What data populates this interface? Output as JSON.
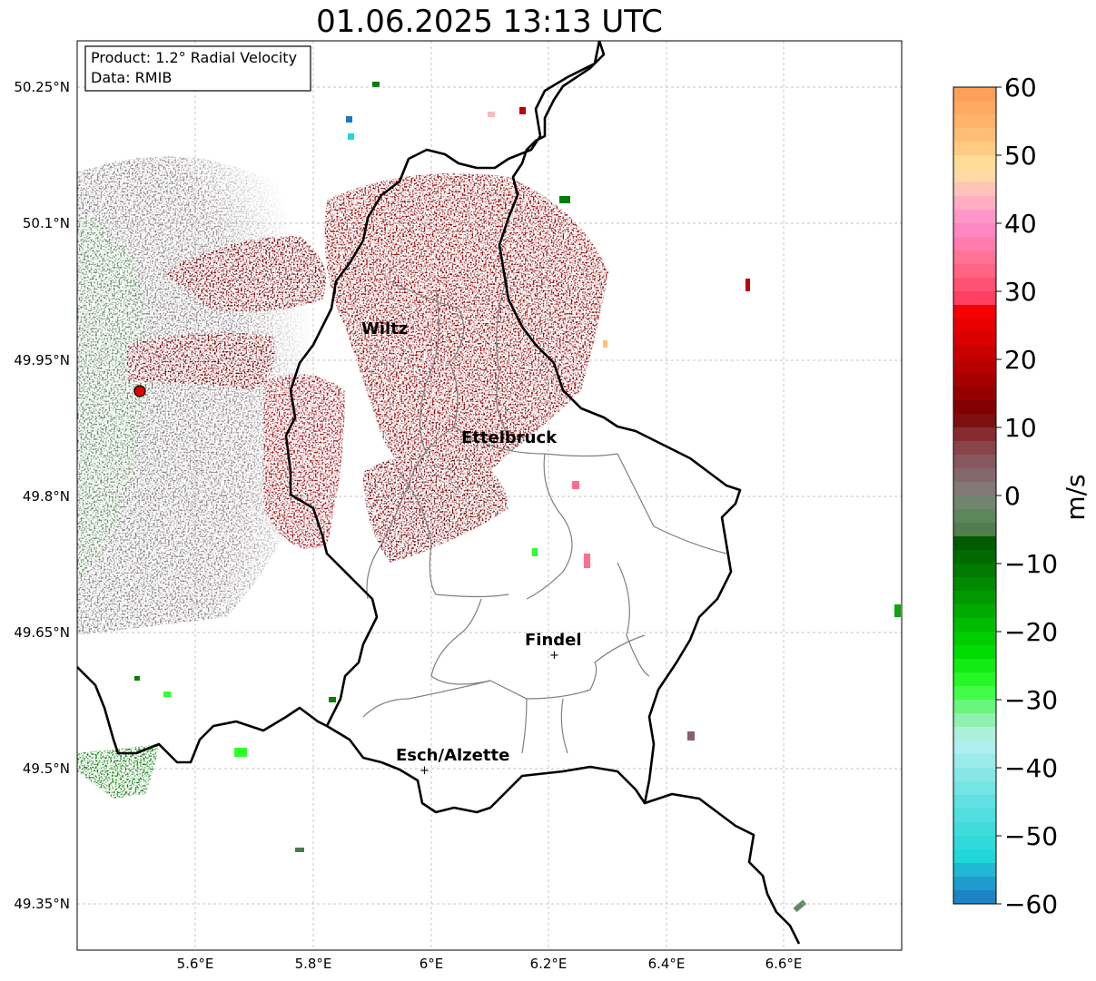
{
  "title": "01.06.2025 13:13 UTC",
  "info_box": {
    "product": "Product: 1.2° Radial Velocity",
    "data": "Data: RMIB"
  },
  "map": {
    "lon_range": [
      5.4,
      6.8
    ],
    "lat_range": [
      49.3,
      50.3
    ],
    "lon_ticks": [
      "5.6°E",
      "5.8°E",
      "6°E",
      "6.2°E",
      "6.4°E",
      "6.6°E"
    ],
    "lat_ticks": [
      "50.25°N",
      "50.1°N",
      "49.95°N",
      "49.8°N",
      "49.65°N",
      "49.5°N",
      "49.35°N"
    ],
    "gridlines": true,
    "radar_site": {
      "lon": 5.505,
      "lat": 49.914,
      "color": "#e00000"
    },
    "cities": [
      {
        "name": "Wiltz",
        "lon": 5.93,
        "lat": 49.97,
        "marker": false
      },
      {
        "name": "Ettelbruck",
        "lon": 6.14,
        "lat": 49.85,
        "marker": false
      },
      {
        "name": "Findel",
        "lon": 6.21,
        "lat": 49.626,
        "marker": true
      },
      {
        "name": "Esch/Alzette",
        "lon": 5.99,
        "lat": 49.499,
        "marker": true
      }
    ]
  },
  "colorbar": {
    "label": "m/s",
    "min": -60,
    "max": 60,
    "ticks": [
      "60",
      "50",
      "40",
      "30",
      "20",
      "10",
      "0",
      "−10",
      "−20",
      "−30",
      "−40",
      "−50",
      "−60"
    ],
    "stops": [
      {
        "v": 60,
        "c": "#ff9a55"
      },
      {
        "v": 52,
        "c": "#ffc27a"
      },
      {
        "v": 48,
        "c": "#ffe49c"
      },
      {
        "v": 44,
        "c": "#ffb8c0"
      },
      {
        "v": 40,
        "c": "#ff8ccc"
      },
      {
        "v": 34,
        "c": "#ff6e8c"
      },
      {
        "v": 29,
        "c": "#ff4060"
      },
      {
        "v": 28,
        "c": "#ff0000"
      },
      {
        "v": 20,
        "c": "#c00000"
      },
      {
        "v": 12,
        "c": "#7a0000"
      },
      {
        "v": 8,
        "c": "#8a3a40"
      },
      {
        "v": 4,
        "c": "#86606a"
      },
      {
        "v": 0,
        "c": "#80807a"
      },
      {
        "v": -2,
        "c": "#628a62"
      },
      {
        "v": -6,
        "c": "#4a7a4a"
      },
      {
        "v": -7,
        "c": "#005a00"
      },
      {
        "v": -15,
        "c": "#009a00"
      },
      {
        "v": -23,
        "c": "#00dd00"
      },
      {
        "v": -28,
        "c": "#30ff30"
      },
      {
        "v": -33,
        "c": "#90f0b0"
      },
      {
        "v": -36,
        "c": "#b8f0f0"
      },
      {
        "v": -45,
        "c": "#60e0e0"
      },
      {
        "v": -53,
        "c": "#20d8d8"
      },
      {
        "v": -56,
        "c": "#20a8d0"
      },
      {
        "v": -60,
        "c": "#1a78c0"
      }
    ]
  }
}
